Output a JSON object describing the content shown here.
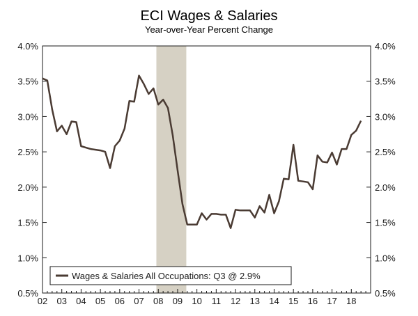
{
  "chart_data": {
    "type": "line",
    "title": "ECI Wages & Salaries",
    "subtitle": "Year-over-Year Percent Change",
    "xlabel": "",
    "ylabel": "",
    "ylim": [
      0.5,
      4.0
    ],
    "xlim": [
      2002.0,
      2019.0
    ],
    "y_ticks": [
      0.5,
      1.0,
      1.5,
      2.0,
      2.5,
      3.0,
      3.5,
      4.0
    ],
    "y_tick_labels": [
      "0.5%",
      "1.0%",
      "1.5%",
      "2.0%",
      "2.5%",
      "3.0%",
      "3.5%",
      "4.0%"
    ],
    "x_ticks": [
      2002,
      2003,
      2004,
      2005,
      2006,
      2007,
      2008,
      2009,
      2010,
      2011,
      2012,
      2013,
      2014,
      2015,
      2016,
      2017,
      2018
    ],
    "x_tick_labels": [
      "02",
      "03",
      "04",
      "05",
      "06",
      "07",
      "08",
      "09",
      "10",
      "11",
      "12",
      "13",
      "14",
      "15",
      "16",
      "17",
      "18"
    ],
    "recession": {
      "start": 2007.9,
      "end": 2009.45
    },
    "legend_position": "bottom-left",
    "series": [
      {
        "name": "Wages & Salaries All Occupations: Q3 @ 2.9%",
        "color": "#4a3b33",
        "points": [
          [
            2002.0,
            3.54
          ],
          [
            2002.25,
            3.51
          ],
          [
            2002.5,
            3.1
          ],
          [
            2002.75,
            2.79
          ],
          [
            2003.0,
            2.87
          ],
          [
            2003.25,
            2.75
          ],
          [
            2003.5,
            2.93
          ],
          [
            2003.75,
            2.92
          ],
          [
            2004.0,
            2.58
          ],
          [
            2004.25,
            2.56
          ],
          [
            2004.5,
            2.54
          ],
          [
            2004.75,
            2.53
          ],
          [
            2005.0,
            2.52
          ],
          [
            2005.25,
            2.5
          ],
          [
            2005.5,
            2.27
          ],
          [
            2005.75,
            2.58
          ],
          [
            2006.0,
            2.66
          ],
          [
            2006.25,
            2.83
          ],
          [
            2006.5,
            3.22
          ],
          [
            2006.75,
            3.21
          ],
          [
            2007.0,
            3.58
          ],
          [
            2007.25,
            3.46
          ],
          [
            2007.5,
            3.32
          ],
          [
            2007.75,
            3.4
          ],
          [
            2008.0,
            3.17
          ],
          [
            2008.25,
            3.24
          ],
          [
            2008.5,
            3.12
          ],
          [
            2008.75,
            2.73
          ],
          [
            2009.0,
            2.24
          ],
          [
            2009.25,
            1.76
          ],
          [
            2009.5,
            1.47
          ],
          [
            2009.75,
            1.47
          ],
          [
            2010.0,
            1.47
          ],
          [
            2010.25,
            1.63
          ],
          [
            2010.5,
            1.54
          ],
          [
            2010.75,
            1.62
          ],
          [
            2011.0,
            1.62
          ],
          [
            2011.25,
            1.61
          ],
          [
            2011.5,
            1.61
          ],
          [
            2011.75,
            1.42
          ],
          [
            2012.0,
            1.68
          ],
          [
            2012.25,
            1.67
          ],
          [
            2012.5,
            1.67
          ],
          [
            2012.75,
            1.67
          ],
          [
            2013.0,
            1.57
          ],
          [
            2013.25,
            1.73
          ],
          [
            2013.5,
            1.64
          ],
          [
            2013.75,
            1.89
          ],
          [
            2014.0,
            1.63
          ],
          [
            2014.25,
            1.8
          ],
          [
            2014.5,
            2.12
          ],
          [
            2014.75,
            2.11
          ],
          [
            2015.0,
            2.6
          ],
          [
            2015.25,
            2.09
          ],
          [
            2015.5,
            2.08
          ],
          [
            2015.75,
            2.07
          ],
          [
            2016.0,
            1.97
          ],
          [
            2016.25,
            2.45
          ],
          [
            2016.5,
            2.36
          ],
          [
            2016.75,
            2.35
          ],
          [
            2017.0,
            2.49
          ],
          [
            2017.25,
            2.32
          ],
          [
            2017.5,
            2.54
          ],
          [
            2017.75,
            2.54
          ],
          [
            2018.0,
            2.74
          ],
          [
            2018.25,
            2.8
          ],
          [
            2018.5,
            2.94
          ]
        ]
      }
    ]
  }
}
